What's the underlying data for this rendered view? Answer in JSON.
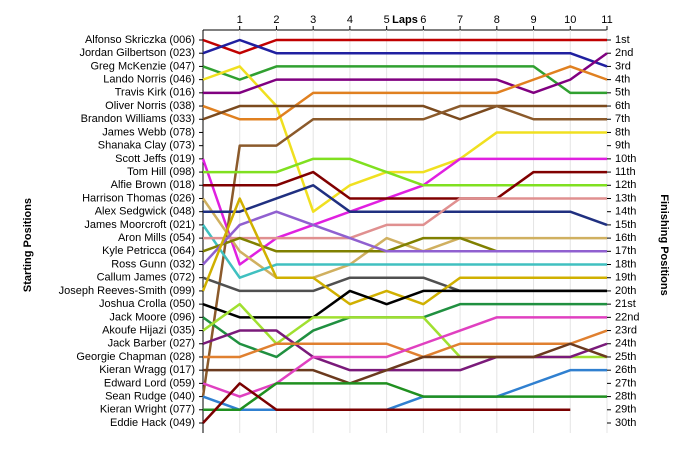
{
  "chart_data": {
    "type": "line",
    "title": "Laps",
    "ylabel": "Starting Positions",
    "y2label": "Finishing Positions",
    "x": [
      0,
      1,
      2,
      3,
      4,
      5,
      6,
      7,
      8,
      9,
      10,
      11
    ],
    "xlim": [
      0,
      11
    ],
    "xticks": [
      1,
      2,
      3,
      4,
      5,
      6,
      7,
      8,
      9,
      10,
      11
    ],
    "ylim": [
      1,
      30
    ],
    "grid": true,
    "finishing_labels": [
      "1st",
      "2nd",
      "3rd",
      "4th",
      "5th",
      "6th",
      "7th",
      "8th",
      "9th",
      "10th",
      "11th",
      "12th",
      "13th",
      "14th",
      "15th",
      "16th",
      "17th",
      "18th",
      "19th",
      "20th",
      "21st",
      "22nd",
      "23rd",
      "24th",
      "25th",
      "26th",
      "27th",
      "28th",
      "29th",
      "30th"
    ],
    "series": [
      {
        "name": "Alfonso Skriczka (006)",
        "color": "#c00000",
        "values": [
          1,
          2,
          1,
          1,
          1,
          1,
          1,
          1,
          1,
          1,
          1,
          1
        ]
      },
      {
        "name": "Jordan Gilbertson (023)",
        "color": "#2020a0",
        "values": [
          2,
          1,
          2,
          2,
          2,
          2,
          2,
          2,
          2,
          2,
          2,
          3
        ]
      },
      {
        "name": "Greg McKenzie (047)",
        "color": "#30a030",
        "values": [
          3,
          4,
          3,
          3,
          3,
          3,
          3,
          3,
          3,
          3,
          5,
          5
        ]
      },
      {
        "name": "Lando Norris (046)",
        "color": "#f0e020",
        "values": [
          4,
          3,
          6,
          14,
          12,
          11,
          11,
          10,
          8,
          8,
          8,
          8
        ]
      },
      {
        "name": "Travis Kirk (016)",
        "color": "#800080",
        "values": [
          5,
          5,
          4,
          4,
          4,
          4,
          4,
          4,
          4,
          5,
          4,
          2
        ]
      },
      {
        "name": "Oliver Norris (038)",
        "color": "#e08020",
        "values": [
          6,
          7,
          7,
          5,
          5,
          5,
          5,
          5,
          5,
          4,
          3,
          4
        ]
      },
      {
        "name": "Brandon Williams (033)",
        "color": "#7b4a1e",
        "values": [
          7,
          6,
          6,
          6,
          6,
          6,
          6,
          7,
          6,
          6,
          6,
          6
        ]
      },
      {
        "name": "James Webb (078)",
        "color": "#e020e0",
        "values": [
          10,
          18,
          16,
          15,
          14,
          13,
          12,
          10,
          10,
          10,
          10,
          10
        ]
      },
      {
        "name": "Shanaka Clay (073)",
        "color": "#8b5a2b",
        "values": [
          28,
          9,
          9,
          7,
          7,
          7,
          7,
          6,
          6,
          7,
          7,
          7
        ]
      },
      {
        "name": "Scott Jeffs (019)",
        "color": "#80e020",
        "values": [
          11,
          11,
          11,
          10,
          10,
          11,
          12,
          12,
          12,
          12,
          12,
          12
        ]
      },
      {
        "name": "Tom Hill (098)",
        "color": "#800000",
        "values": [
          12,
          12,
          12,
          11,
          13,
          13,
          13,
          13,
          13,
          11,
          11,
          11
        ]
      },
      {
        "name": "Alfie Brown (018)",
        "color": "#d0b060",
        "values": [
          13,
          17,
          19,
          19,
          18,
          16,
          17,
          16,
          16,
          16,
          16,
          16
        ]
      },
      {
        "name": "Harrison Thomas (026)",
        "color": "#203080",
        "values": [
          14,
          14,
          13,
          12,
          14,
          14,
          14,
          14,
          14,
          14,
          14,
          15
        ]
      },
      {
        "name": "Alex Sedgwick (048)",
        "color": "#40c0c0",
        "values": [
          15,
          19,
          18,
          18,
          18,
          18,
          18,
          18,
          18,
          18,
          18,
          18
        ]
      },
      {
        "name": "James Moorcroft (021)",
        "color": "#e09090",
        "values": [
          16,
          16,
          16,
          16,
          16,
          15,
          15,
          13,
          13,
          13,
          13,
          13
        ]
      },
      {
        "name": "Aron Mills (054)",
        "color": "#808000",
        "values": [
          17,
          16,
          17,
          17,
          17,
          17,
          16,
          16,
          17,
          17,
          17,
          17
        ]
      },
      {
        "name": "Kyle Petricca (064)",
        "color": "#9060d0",
        "values": [
          18,
          15,
          14,
          15,
          16,
          17,
          17,
          17,
          17,
          17,
          17,
          17
        ]
      },
      {
        "name": "Ross Gunn (032)",
        "color": "#505050",
        "values": [
          19,
          20,
          20,
          20,
          19,
          19,
          19,
          20,
          20,
          20,
          20,
          20
        ]
      },
      {
        "name": "Callum James (072)",
        "color": "#d0b000",
        "values": [
          20,
          13,
          19,
          19,
          21,
          20,
          21,
          19,
          19,
          19,
          19,
          19
        ]
      },
      {
        "name": "Joseph Reeves-Smith (099)",
        "color": "#000000",
        "values": [
          21,
          22,
          22,
          22,
          20,
          21,
          20,
          20,
          20,
          20,
          20,
          20
        ]
      },
      {
        "name": "Joshua Crolla (050)",
        "color": "#209040",
        "values": [
          22,
          24,
          25,
          23,
          22,
          22,
          22,
          21,
          21,
          21,
          21,
          21
        ]
      },
      {
        "name": "Jack Moore (096)",
        "color": "#a0e030",
        "values": [
          23,
          21,
          24,
          22,
          22,
          22,
          22,
          25,
          25,
          25,
          25,
          25
        ]
      },
      {
        "name": "Akoufe Hijazi (035)",
        "color": "#7a1a7a",
        "values": [
          24,
          23,
          23,
          25,
          26,
          26,
          26,
          26,
          25,
          25,
          25,
          24
        ]
      },
      {
        "name": "Jack Barber (027)",
        "color": "#e08030",
        "values": [
          25,
          25,
          24,
          24,
          24,
          24,
          25,
          24,
          24,
          24,
          24,
          23
        ]
      },
      {
        "name": "Georgie Chapman (028)",
        "color": "#6b3a1e",
        "values": [
          26,
          26,
          26,
          26,
          27,
          26,
          25,
          25,
          25,
          25,
          24,
          25
        ]
      },
      {
        "name": "Kieran Wragg (017)",
        "color": "#e040c0",
        "values": [
          27,
          28,
          27,
          25,
          25,
          25,
          24,
          23,
          22,
          22,
          22,
          22
        ]
      },
      {
        "name": "Edward Lord (059)",
        "color": "#3080d0",
        "values": [
          28,
          29,
          29,
          29,
          29,
          29,
          28,
          28,
          28,
          27,
          26,
          26
        ]
      },
      {
        "name": "Sean Rudge (040)",
        "color": "#209020",
        "values": [
          29,
          29,
          27,
          27,
          27,
          27,
          28,
          28,
          28,
          28,
          28,
          28
        ]
      },
      {
        "name": "Kieran Wright (077)",
        "color": "#7a0000",
        "values": [
          30,
          27,
          29,
          29,
          29,
          29,
          29,
          29,
          29,
          29,
          29,
          null
        ]
      },
      {
        "name": "Eddie Hack (049)",
        "color": "#808080",
        "values": [
          null,
          null,
          null,
          null,
          null,
          null,
          null,
          null,
          null,
          null,
          null,
          null
        ]
      }
    ]
  }
}
